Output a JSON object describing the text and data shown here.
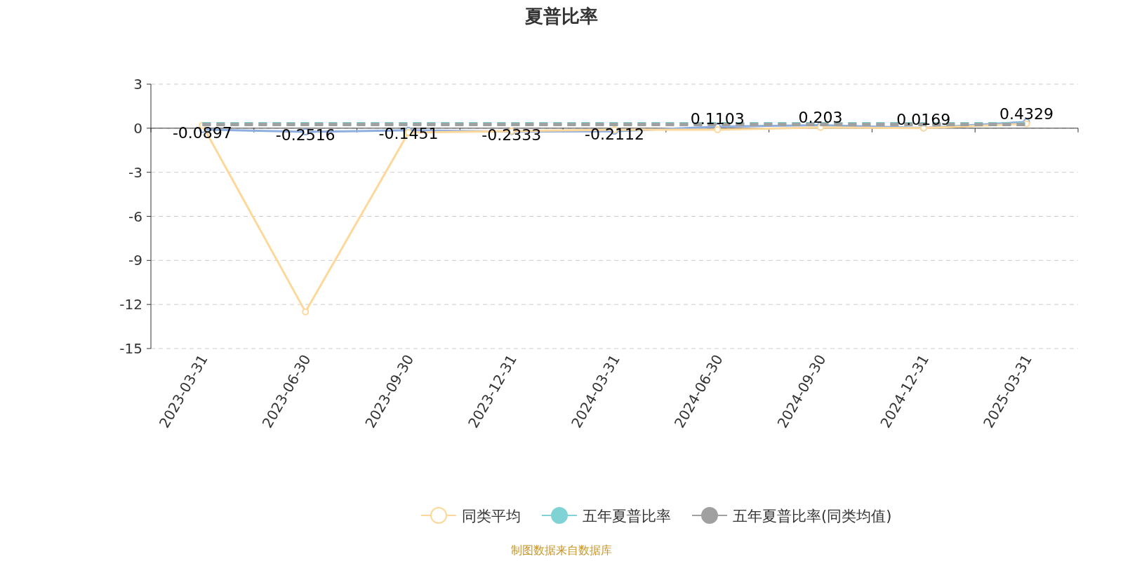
{
  "chart_data": {
    "type": "line",
    "title": "夏普比率",
    "categories": [
      "2023-03-31",
      "2023-06-30",
      "2023-09-30",
      "2023-12-31",
      "2024-03-31",
      "2024-06-30",
      "2024-09-30",
      "2024-12-31",
      "2025-03-31"
    ],
    "ylim": [
      -15,
      3
    ],
    "yticks": [
      -15,
      -12,
      -9,
      -6,
      -3,
      0,
      3
    ],
    "grid": "y",
    "legend": "bottom",
    "marker": "circle",
    "series": [
      {
        "color": "#8eaee0",
        "values": [
          -0.0897,
          -0.2516,
          -0.1451,
          -0.2333,
          -0.2112,
          0.1103,
          0.203,
          0.0169,
          0.4329
        ],
        "value_labels": [
          "-0.0897",
          "-0.2516",
          "-0.1451",
          "-0.2333",
          "-0.2112",
          "0.1103",
          "0.203",
          "0.0169",
          "0.4329"
        ]
      },
      {
        "name": "同类平均",
        "color": "#fdd89a",
        "values": [
          0.2,
          -12.5,
          -0.3,
          -0.2,
          -0.1,
          -0.1,
          0.05,
          0.0,
          0.3
        ]
      },
      {
        "name": "五年夏普比率",
        "color": "#80d3d5",
        "line_style": "dashed",
        "marker": "none",
        "values": [
          0.3,
          0.3,
          0.3,
          0.3,
          0.3,
          0.3,
          0.3,
          0.3,
          0.3
        ]
      },
      {
        "name": "五年夏普比率(同类均值)",
        "color": "#a0a0a0",
        "line_style": "dashed",
        "marker": "none",
        "values": [
          0.25,
          0.25,
          0.25,
          0.25,
          0.25,
          0.25,
          0.25,
          0.25,
          0.25
        ]
      }
    ],
    "annotations": [
      "制图数据来自数据库"
    ]
  }
}
